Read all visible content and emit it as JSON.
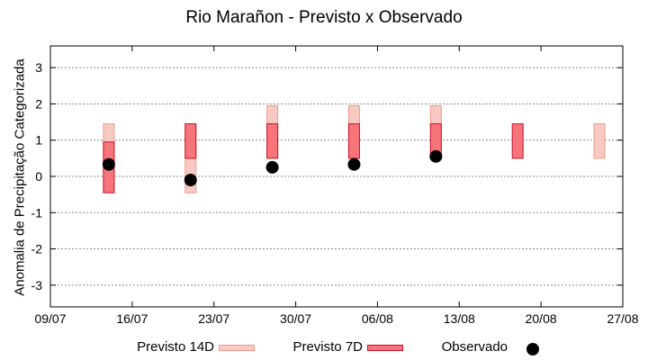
{
  "chart_data": {
    "type": "range-bar-with-points",
    "title": "Rio Marañon - Previsto x Observado",
    "xlabel": "",
    "ylabel": "Anomalia de Precipitação Categorizada",
    "ylim": [
      -3.6,
      3.6
    ],
    "yticks": [
      -3,
      -2,
      -1,
      0,
      1,
      2,
      3
    ],
    "x_tick_labels": [
      "09/07",
      "16/07",
      "23/07",
      "30/07",
      "06/08",
      "13/08",
      "20/08",
      "27/08"
    ],
    "grid": true,
    "legend_position": "bottom",
    "colors": {
      "previsto_14d_fill": "#f8c9c2",
      "previsto_14d_stroke": "#f1988a",
      "previsto_7d_fill": "#f7747a",
      "previsto_7d_stroke": "#c8102e",
      "observado": "#000000",
      "grid": "#888888"
    },
    "series": [
      {
        "name": "Previsto 14D",
        "kind": "range",
        "points": [
          {
            "x": "14/07",
            "low": -0.45,
            "high": 1.45
          },
          {
            "x": "21/07",
            "low": -0.45,
            "high": 1.45
          },
          {
            "x": "28/07",
            "low": 0.5,
            "high": 1.95
          },
          {
            "x": "04/08",
            "low": 0.5,
            "high": 1.95
          },
          {
            "x": "11/08",
            "low": 0.5,
            "high": 1.95
          },
          {
            "x": "25/08",
            "low": 0.5,
            "high": 1.45
          }
        ]
      },
      {
        "name": "Previsto 7D",
        "kind": "range",
        "points": [
          {
            "x": "14/07",
            "low": -0.45,
            "high": 0.95
          },
          {
            "x": "21/07",
            "low": 0.5,
            "high": 1.45
          },
          {
            "x": "28/07",
            "low": 0.5,
            "high": 1.45
          },
          {
            "x": "04/08",
            "low": 0.5,
            "high": 1.45
          },
          {
            "x": "11/08",
            "low": 0.5,
            "high": 1.45
          },
          {
            "x": "18/08",
            "low": 0.5,
            "high": 1.45
          }
        ]
      },
      {
        "name": "Observado",
        "kind": "point",
        "points": [
          {
            "x": "14/07",
            "y": 0.33
          },
          {
            "x": "21/07",
            "y": -0.1
          },
          {
            "x": "28/07",
            "y": 0.25
          },
          {
            "x": "04/08",
            "y": 0.33
          },
          {
            "x": "11/08",
            "y": 0.55
          }
        ]
      }
    ]
  }
}
